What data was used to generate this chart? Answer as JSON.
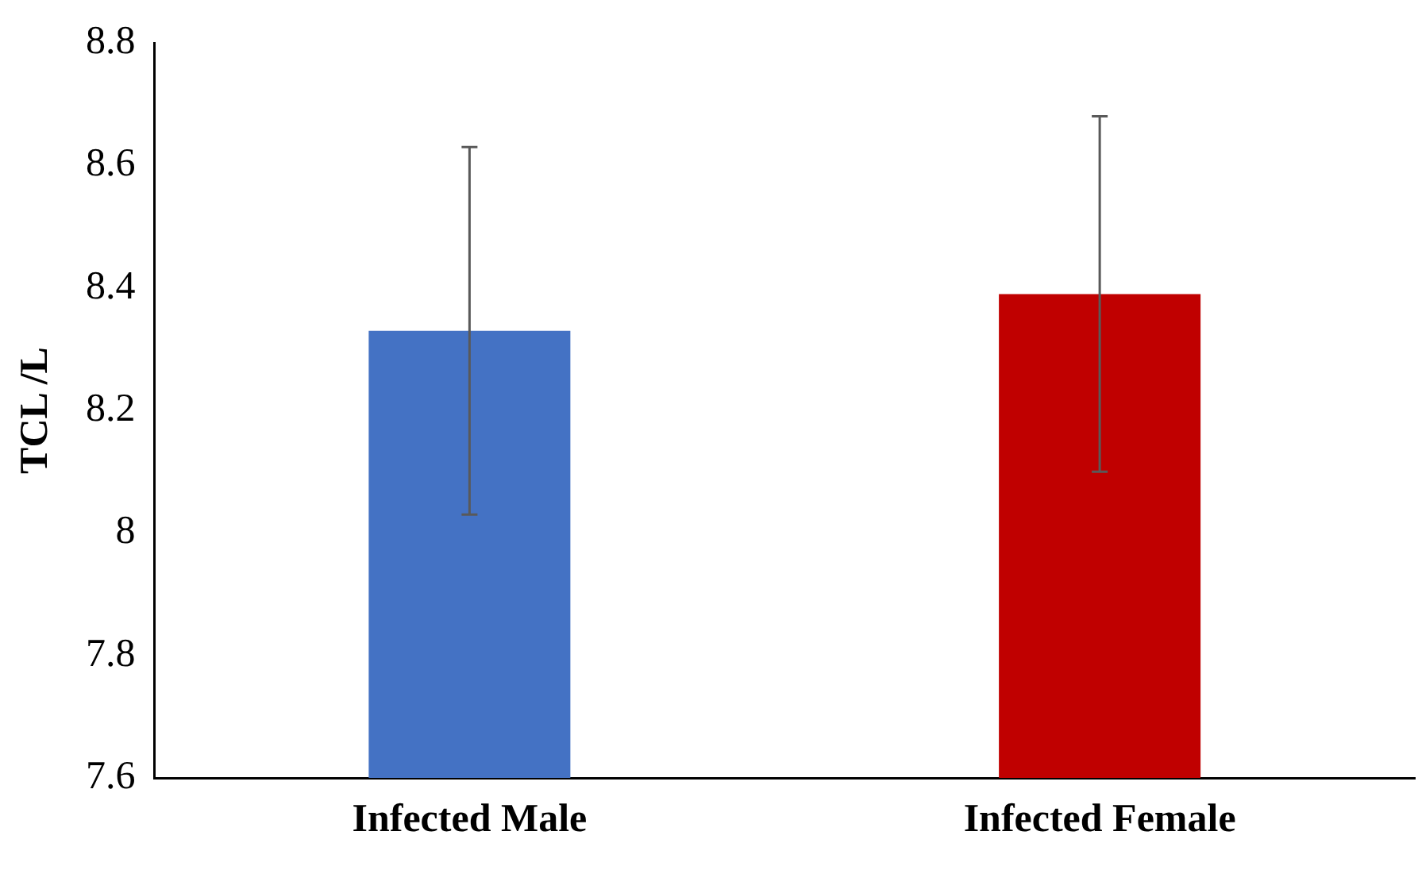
{
  "chart_data": {
    "type": "bar",
    "ylabel": "TCL /L",
    "categories": [
      "Infected Male",
      "Infected Female"
    ],
    "values": [
      8.33,
      8.39
    ],
    "colors": [
      "#4472c4",
      "#c00000"
    ],
    "errors": [
      0.3,
      0.29
    ],
    "ylim": [
      7.6,
      8.8
    ],
    "yticks": [
      7.6,
      7.8,
      8,
      8.2,
      8.4,
      8.6,
      8.8
    ],
    "grid": false,
    "legend": false
  }
}
